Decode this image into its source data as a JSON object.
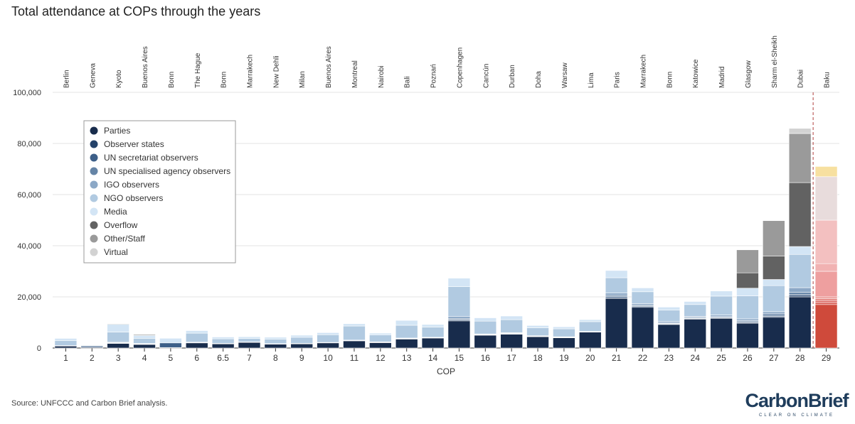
{
  "chart_data": {
    "type": "stacked_bar",
    "title": "Total attendance at COPs through the years",
    "x_label": "COP",
    "source": "Source: UNFCCC and Carbon Brief analysis.",
    "categories": [
      "1",
      "2",
      "3",
      "4",
      "5",
      "6",
      "6.5",
      "7",
      "8",
      "9",
      "10",
      "11",
      "12",
      "13",
      "14",
      "15",
      "16",
      "17",
      "18",
      "19",
      "20",
      "21",
      "22",
      "23",
      "24",
      "25",
      "26",
      "27",
      "28",
      "29"
    ],
    "locations": [
      "Berlin",
      "Geneva",
      "Kyoto",
      "Buenos Aires",
      "Bonn",
      "The Hague",
      "Bonn",
      "Marrakech",
      "New Dehli",
      "Milan",
      "Buenos Aires",
      "Montreal",
      "Nairobi",
      "Bali",
      "Poznań",
      "Copenhagen",
      "Cancún",
      "Durban",
      "Doha",
      "Warsaw",
      "Lima",
      "Paris",
      "Marrakech",
      "Bonn",
      "Katowice",
      "Madrid",
      "Glasgow",
      "Sharm el-Sheikh",
      "Dubai",
      "Baku"
    ],
    "series": [
      {
        "name": "Parties",
        "color": "#182c4c",
        "values": [
          757,
          300,
          1800,
          1400,
          200,
          2000,
          1600,
          2200,
          1500,
          1600,
          2000,
          2800,
          2100,
          3500,
          3900,
          10600,
          5000,
          5400,
          4400,
          4000,
          6200,
          19400,
          15900,
          9200,
          11300,
          11600,
          9700,
          12000,
          20000,
          17000
        ]
      },
      {
        "name": "Observer states",
        "color": "#24426a",
        "values": [
          0,
          0,
          50,
          50,
          0,
          50,
          50,
          50,
          50,
          50,
          50,
          50,
          50,
          100,
          50,
          300,
          100,
          100,
          100,
          100,
          50,
          300,
          300,
          200,
          200,
          200,
          300,
          400,
          500,
          800
        ]
      },
      {
        "name": "UN secretariat observers",
        "color": "#3d5f88",
        "values": [
          50,
          500,
          200,
          100,
          1800,
          100,
          50,
          50,
          50,
          50,
          50,
          100,
          100,
          100,
          100,
          300,
          150,
          150,
          100,
          100,
          100,
          400,
          300,
          200,
          200,
          200,
          300,
          400,
          500,
          800
        ]
      },
      {
        "name": "UN specialised agency observers",
        "color": "#6584a6",
        "values": [
          50,
          100,
          100,
          50,
          0,
          50,
          50,
          50,
          50,
          50,
          50,
          50,
          50,
          100,
          50,
          400,
          100,
          150,
          100,
          100,
          50,
          500,
          400,
          300,
          300,
          300,
          400,
          600,
          800,
          700
        ]
      },
      {
        "name": "IGO observers",
        "color": "#8ca8c6",
        "values": [
          100,
          100,
          300,
          200,
          0,
          100,
          50,
          50,
          50,
          50,
          50,
          100,
          100,
          100,
          100,
          700,
          150,
          200,
          100,
          100,
          100,
          900,
          500,
          500,
          400,
          600,
          700,
          800,
          1800,
          700
        ]
      },
      {
        "name": "NGO observers",
        "color": "#b1cae1",
        "values": [
          1900,
          200,
          3800,
          2000,
          0,
          3500,
          1800,
          1300,
          1800,
          2400,
          3000,
          5500,
          2700,
          5000,
          4000,
          11700,
          5000,
          5100,
          3100,
          3100,
          3800,
          6000,
          4600,
          4400,
          4600,
          7400,
          9000,
          10200,
          13000,
          10000
        ]
      },
      {
        "name": "Media",
        "color": "#d3e5f5",
        "values": [
          900,
          0,
          3000,
          1100,
          1800,
          1000,
          700,
          700,
          700,
          800,
          800,
          900,
          700,
          1900,
          1000,
          3300,
          1300,
          1400,
          900,
          800,
          800,
          2800,
          1500,
          1200,
          1200,
          2000,
          3000,
          2400,
          3100,
          3000
        ]
      },
      {
        "name": "Overflow",
        "color": "#626262",
        "values": [
          0,
          0,
          200,
          300,
          0,
          0,
          0,
          0,
          0,
          0,
          0,
          0,
          0,
          0,
          0,
          0,
          0,
          0,
          0,
          0,
          0,
          0,
          0,
          0,
          0,
          0,
          6000,
          9200,
          25000,
          17000
        ]
      },
      {
        "name": "Other/Staff",
        "color": "#9a9a9a",
        "values": [
          0,
          0,
          0,
          0,
          0,
          0,
          0,
          0,
          0,
          0,
          0,
          0,
          0,
          0,
          0,
          0,
          0,
          0,
          0,
          0,
          0,
          0,
          0,
          0,
          0,
          0,
          9000,
          13800,
          19200,
          17000
        ]
      },
      {
        "name": "Virtual",
        "color": "#d2d2d2",
        "values": [
          0,
          0,
          0,
          0,
          0,
          0,
          0,
          0,
          0,
          0,
          0,
          0,
          0,
          0,
          0,
          0,
          0,
          0,
          0,
          0,
          0,
          0,
          0,
          0,
          0,
          0,
          0,
          0,
          2000,
          4000
        ]
      }
    ],
    "highlight": {
      "category": "29",
      "colors": [
        "#cf4a3b",
        "#d85d53",
        "#dd6e67",
        "#e27f7a",
        "#e8918d",
        "#ee9f9f",
        "#f1b2b2",
        "#f3c0c0",
        "#e8dcdc",
        "#f7e0a0"
      ]
    },
    "ylim": [
      0,
      100000
    ],
    "yticks": [
      0,
      {
        "value": 20000,
        "label": "20,000"
      },
      {
        "value": 40000,
        "label": "40,000"
      },
      {
        "value": 60000,
        "label": "60,000"
      },
      {
        "value": 80000,
        "label": "80,000"
      },
      {
        "value": 100000,
        "label": "100,000"
      }
    ],
    "grid": true,
    "legend": "upper left"
  },
  "logo": {
    "name": "CarbonBrief",
    "tagline": "CLEAR ON CLIMATE"
  }
}
